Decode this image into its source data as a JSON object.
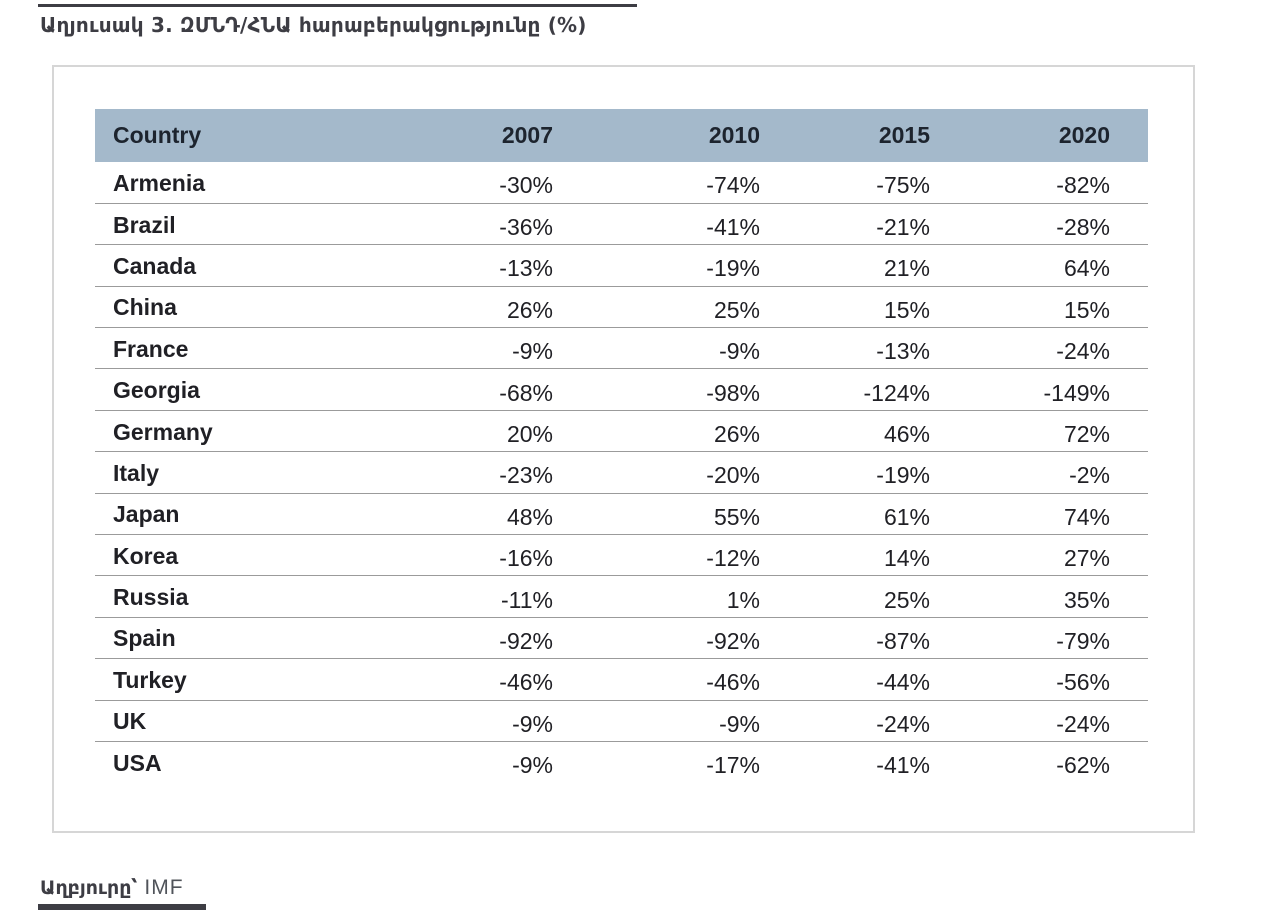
{
  "document": {
    "title": "Աղյուսակ 3. ԶՄՆԴ/ՀՆԱ հարաբերակցությունը (%)",
    "source": {
      "label": "Աղբյուրը՝",
      "value": "IMF"
    }
  },
  "table": {
    "columns": [
      "Country",
      "2007",
      "2010",
      "2015",
      "2020"
    ],
    "rows": [
      [
        "Armenia",
        "-30%",
        "-74%",
        "-75%",
        "-82%"
      ],
      [
        "Brazil",
        "-36%",
        "-41%",
        "-21%",
        "-28%"
      ],
      [
        "Canada",
        "-13%",
        "-19%",
        "21%",
        "64%"
      ],
      [
        "China",
        "26%",
        "25%",
        "15%",
        "15%"
      ],
      [
        "France",
        "-9%",
        "-9%",
        "-13%",
        "-24%"
      ],
      [
        "Georgia",
        "-68%",
        "-98%",
        "-124%",
        "-149%"
      ],
      [
        "Germany",
        "20%",
        "26%",
        "46%",
        "72%"
      ],
      [
        "Italy",
        "-23%",
        "-20%",
        "-19%",
        "-2%"
      ],
      [
        "Japan",
        "48%",
        "55%",
        "61%",
        "74%"
      ],
      [
        "Korea",
        "-16%",
        "-12%",
        "14%",
        "27%"
      ],
      [
        "Russia",
        "-11%",
        "1%",
        "25%",
        "35%"
      ],
      [
        "Spain",
        "-92%",
        "-92%",
        "-87%",
        "-79%"
      ],
      [
        "Turkey",
        "-46%",
        "-46%",
        "-44%",
        "-56%"
      ],
      [
        "UK",
        "-9%",
        "-9%",
        "-24%",
        "-24%"
      ],
      [
        "USA",
        "-9%",
        "-17%",
        "-41%",
        "-62%"
      ]
    ]
  },
  "colors": {
    "header_bg": "#a4b9cb",
    "title_text": "#3d3d44",
    "separator": "#9b9b9b",
    "box_border": "#d6d6d6",
    "source_text": "#50545a"
  }
}
